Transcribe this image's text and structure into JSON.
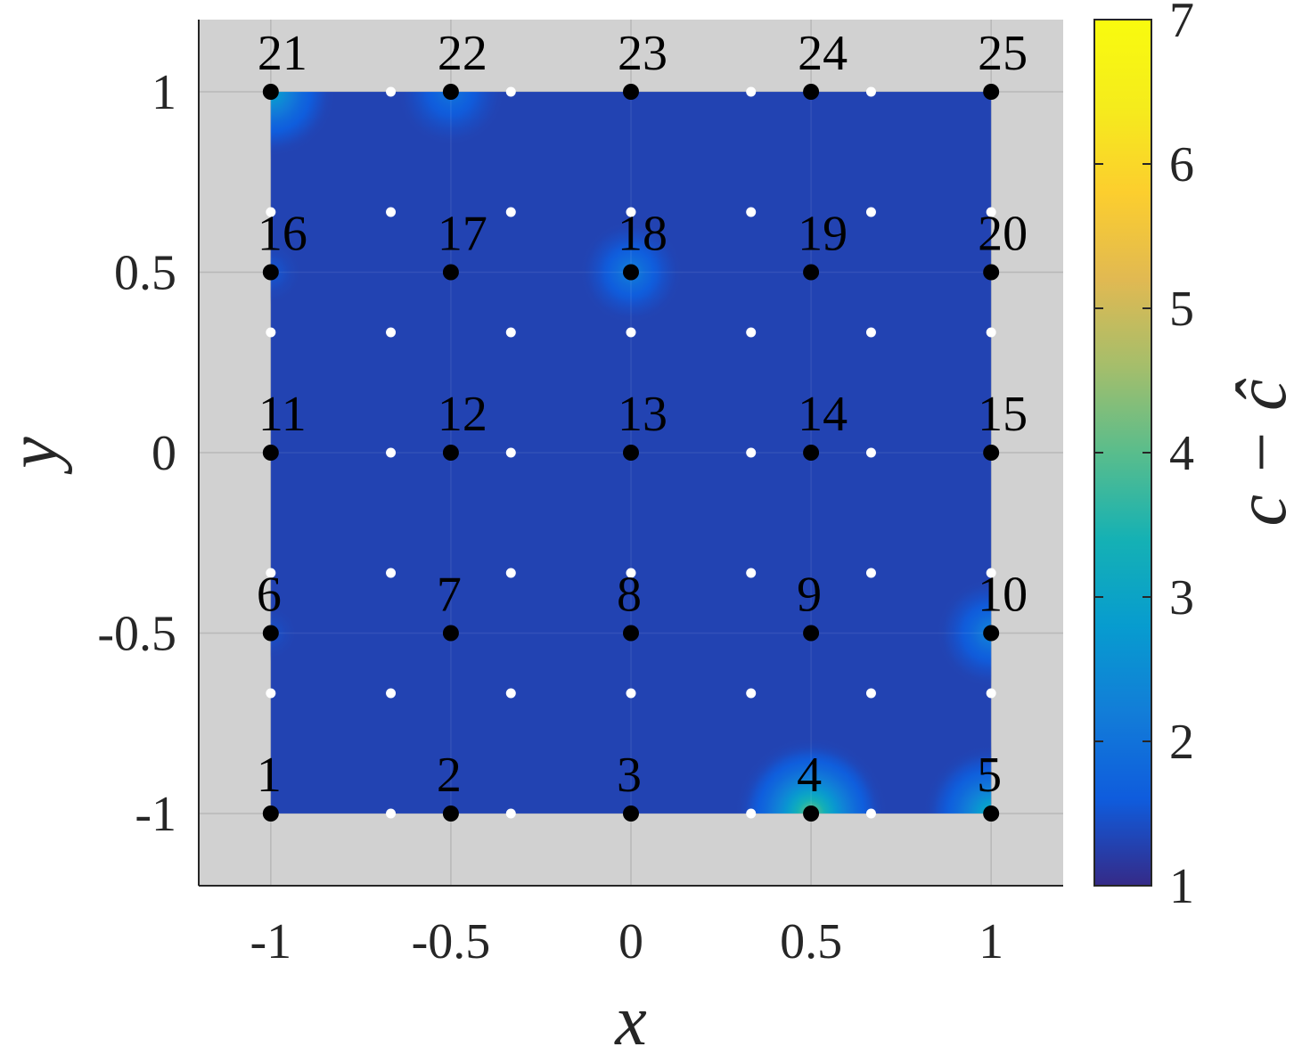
{
  "chart_data": {
    "type": "heatmap",
    "xlabel": "x",
    "ylabel": "y",
    "xlim": [
      -1.2,
      1.2
    ],
    "ylim": [
      -1.2,
      1.2
    ],
    "xticks": [
      "-1",
      "-0.5",
      "0",
      "0.5",
      "1"
    ],
    "yticks": [
      "-1",
      "-0.5",
      "0",
      "0.5",
      "1"
    ],
    "xtick_values": [
      -1,
      -0.5,
      0,
      0.5,
      1
    ],
    "ytick_values": [
      -1,
      -0.5,
      0,
      0.5,
      1
    ],
    "grid": true,
    "domain": {
      "x": [
        -1,
        1
      ],
      "y": [
        -1,
        1
      ]
    },
    "background_value": 1.3,
    "colorbar": {
      "label": "c − ĉ",
      "range": [
        1,
        7
      ],
      "ticks": [
        "1",
        "2",
        "3",
        "4",
        "5",
        "6",
        "7"
      ],
      "tick_values": [
        1,
        2,
        3,
        4,
        5,
        6,
        7
      ],
      "colormap": "parula"
    },
    "hotspots": [
      {
        "node": "4",
        "x": 0.5,
        "y": -1.0,
        "peak": 4.3,
        "radius": 0.22
      },
      {
        "node": "5",
        "x": 1.0,
        "y": -1.0,
        "peak": 3.4,
        "radius": 0.2
      },
      {
        "node": "10",
        "x": 1.0,
        "y": -0.5,
        "peak": 2.4,
        "radius": 0.16
      },
      {
        "node": "18",
        "x": 0.0,
        "y": 0.5,
        "peak": 2.3,
        "radius": 0.15
      },
      {
        "node": "21",
        "x": -1.0,
        "y": 1.0,
        "peak": 3.1,
        "radius": 0.19
      },
      {
        "node": "22",
        "x": -0.5,
        "y": 1.0,
        "peak": 2.1,
        "radius": 0.16
      },
      {
        "node": "16",
        "x": -1.0,
        "y": 0.5,
        "peak": 1.6,
        "radius": 0.09
      },
      {
        "node": "6",
        "x": -1.0,
        "y": -0.5,
        "peak": 1.5,
        "radius": 0.08
      }
    ],
    "nodes": {
      "labels": [
        "1",
        "2",
        "3",
        "4",
        "5",
        "6",
        "7",
        "8",
        "9",
        "10",
        "11",
        "12",
        "13",
        "14",
        "15",
        "16",
        "17",
        "18",
        "19",
        "20",
        "21",
        "22",
        "23",
        "24",
        "25"
      ],
      "x": [
        -1,
        -0.5,
        0,
        0.5,
        1,
        -1,
        -0.5,
        0,
        0.5,
        1,
        -1,
        -0.5,
        0,
        0.5,
        1,
        -1,
        -0.5,
        0,
        0.5,
        1,
        -1,
        -0.5,
        0,
        0.5,
        1
      ],
      "y": [
        -1,
        -1,
        -1,
        -1,
        -1,
        -0.5,
        -0.5,
        -0.5,
        -0.5,
        -0.5,
        0,
        0,
        0,
        0,
        0,
        0.5,
        0.5,
        0.5,
        0.5,
        0.5,
        1,
        1,
        1,
        1,
        1
      ]
    },
    "sample_points": {
      "x": [
        -1,
        -0.6667,
        -0.3333,
        0,
        0.3333,
        0.6667,
        1
      ],
      "y": [
        -1,
        -0.6667,
        -0.3333,
        0,
        0.3333,
        0.6667,
        1
      ]
    },
    "colors": {
      "plot_background": "#d1d1d1",
      "node_marker": "#000000",
      "sample_marker": "#ffffff",
      "grid": "#b8b8b8"
    }
  }
}
